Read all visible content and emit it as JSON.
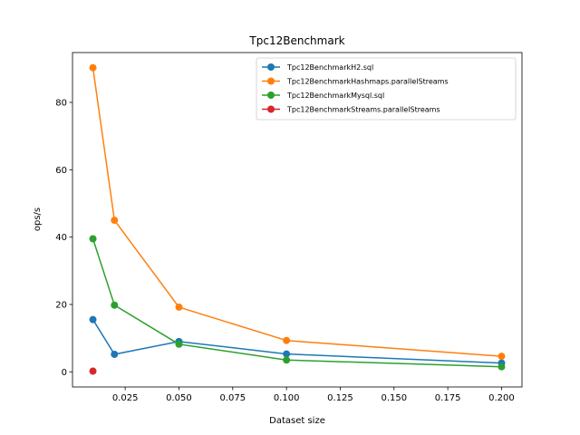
{
  "chart_data": {
    "type": "line",
    "title": "Tpc12Benchmark",
    "xlabel": "Dataset size",
    "ylabel": "ops/s",
    "xlim": [
      0.0005,
      0.2095
    ],
    "ylim": [
      -4.5,
      94.8
    ],
    "xticks": [
      0.025,
      0.05,
      0.075,
      0.1,
      0.125,
      0.15,
      0.175,
      0.2
    ],
    "xtick_labels": [
      "0.025",
      "0.050",
      "0.075",
      "0.100",
      "0.125",
      "0.150",
      "0.175",
      "0.200"
    ],
    "yticks": [
      0,
      20,
      40,
      60,
      80
    ],
    "ytick_labels": [
      "0",
      "20",
      "40",
      "60",
      "80"
    ],
    "grid": false,
    "legend_position": "top-right",
    "series": [
      {
        "name": "Tpc12BenchmarkH2.sql",
        "color": "#1f77b4",
        "x": [
          0.01,
          0.02,
          0.05,
          0.1,
          0.2
        ],
        "y": [
          15.5,
          5.2,
          9.0,
          5.3,
          2.6
        ]
      },
      {
        "name": "Tpc12BenchmarkHashmaps.parallelStreams",
        "color": "#ff7f0e",
        "x": [
          0.01,
          0.02,
          0.05,
          0.1,
          0.2
        ],
        "y": [
          90.3,
          45.0,
          19.2,
          9.3,
          4.6
        ]
      },
      {
        "name": "Tpc12BenchmarkMysql.sql",
        "color": "#2ca02c",
        "x": [
          0.01,
          0.02,
          0.05,
          0.1,
          0.2
        ],
        "y": [
          39.5,
          19.8,
          8.2,
          3.5,
          1.5
        ]
      },
      {
        "name": "Tpc12BenchmarkStreams.parallelStreams",
        "color": "#d62728",
        "x": [
          0.01
        ],
        "y": [
          0.2
        ]
      }
    ]
  }
}
